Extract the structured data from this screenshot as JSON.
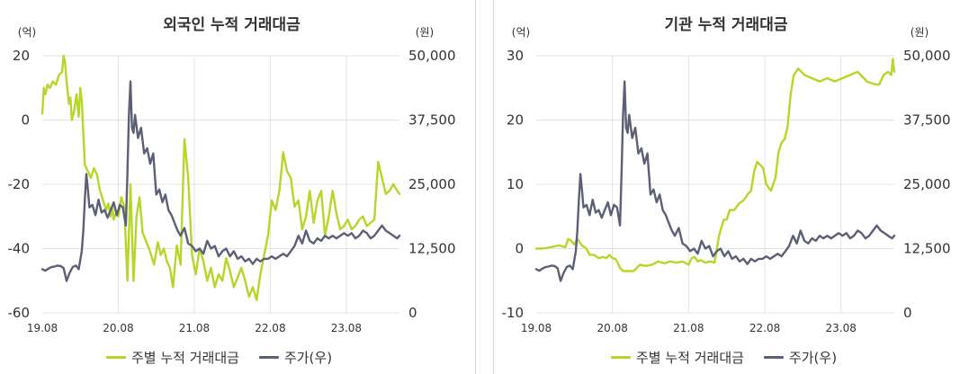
{
  "colors": {
    "flow": "#b6d629",
    "price": "#5c6075",
    "grid": "#e3e3e3",
    "text": "#333333"
  },
  "legend": {
    "flow_label": "주별 누적 거래대금",
    "price_label": "주가(우)"
  },
  "chart_data": [
    {
      "type": "line",
      "title": "외국인 누적 거래대금",
      "left_unit": "(억)",
      "right_unit": "(원)",
      "x_tick_labels": [
        "19.08",
        "20.08",
        "21.08",
        "22.08",
        "23.08"
      ],
      "xlim": [
        2019.58,
        2024.28
      ],
      "y_left_ticks": [
        "20",
        "0",
        "-20",
        "-40",
        "-60"
      ],
      "ylim_left": [
        -60,
        20
      ],
      "y_right_ticks": [
        "50,000",
        "37,500",
        "25,000",
        "12,500",
        "0"
      ],
      "ylim_right": [
        0,
        50000
      ],
      "series": [
        {
          "name": "주별 누적 거래대금",
          "axis": "left",
          "color": "#b6d629",
          "x": [
            2019.58,
            2019.6,
            2019.62,
            2019.65,
            2019.68,
            2019.72,
            2019.76,
            2019.8,
            2019.84,
            2019.86,
            2019.88,
            2019.9,
            2019.93,
            2019.95,
            2019.97,
            2020.0,
            2020.03,
            2020.06,
            2020.08,
            2020.1,
            2020.14,
            2020.18,
            2020.22,
            2020.26,
            2020.3,
            2020.34,
            2020.38,
            2020.42,
            2020.45,
            2020.48,
            2020.5,
            2020.52,
            2020.55,
            2020.58,
            2020.62,
            2020.66,
            2020.7,
            2020.74,
            2020.78,
            2020.82,
            2020.86,
            2020.9,
            2020.95,
            2021.0,
            2021.05,
            2021.1,
            2021.14,
            2021.18,
            2021.22,
            2021.26,
            2021.3,
            2021.35,
            2021.4,
            2021.45,
            2021.5,
            2021.55,
            2021.6,
            2021.65,
            2021.7,
            2021.75,
            2021.8,
            2021.85,
            2021.9,
            2021.95,
            2022.0,
            2022.05,
            2022.1,
            2022.15,
            2022.2,
            2022.25,
            2022.3,
            2022.35,
            2022.4,
            2022.45,
            2022.5,
            2022.55,
            2022.6,
            2022.65,
            2022.7,
            2022.75,
            2022.8,
            2022.85,
            2022.9,
            2022.95,
            2023.0,
            2023.05,
            2023.1,
            2023.15,
            2023.2,
            2023.25,
            2023.3,
            2023.35,
            2023.4,
            2023.45,
            2023.5,
            2023.55,
            2023.6,
            2023.65,
            2023.7,
            2023.75,
            2023.8,
            2023.85,
            2023.9,
            2023.95,
            2024.0,
            2024.05,
            2024.1,
            2024.15,
            2024.2,
            2024.25,
            2024.28
          ],
          "values": [
            2,
            10,
            8,
            11,
            10,
            12,
            11,
            14,
            15,
            20,
            18,
            12,
            5,
            7,
            0,
            3,
            8,
            1,
            10,
            6,
            -14,
            -16,
            -18,
            -15,
            -17,
            -22,
            -25,
            -28,
            -26,
            -30,
            -27,
            -31,
            -29,
            -30,
            -24,
            -27,
            -50,
            -20,
            -50,
            -30,
            -24,
            -35,
            -38,
            -41,
            -45,
            -38,
            -42,
            -40,
            -44,
            -46,
            -52,
            -39,
            -45,
            -6,
            -18,
            -42,
            -48,
            -40,
            -44,
            -50,
            -46,
            -52,
            -48,
            -50,
            -43,
            -47,
            -52,
            -49,
            -46,
            -50,
            -55,
            -52,
            -56,
            -48,
            -42,
            -36,
            -25,
            -28,
            -22,
            -10,
            -16,
            -18,
            -27,
            -25,
            -34,
            -30,
            -22,
            -32,
            -25,
            -22,
            -36,
            -30,
            -22,
            -29,
            -34,
            -33,
            -31,
            -34,
            -33,
            -31,
            -30,
            -33,
            -32,
            -31,
            -13,
            -18,
            -23,
            -22,
            -20,
            -22,
            -23
          ]
        },
        {
          "name": "주가(우)",
          "axis": "right",
          "color": "#5c6075",
          "x": [
            2019.58,
            2019.62,
            2019.66,
            2019.7,
            2019.74,
            2019.78,
            2019.82,
            2019.86,
            2019.9,
            2019.94,
            2019.98,
            2020.02,
            2020.06,
            2020.1,
            2020.12,
            2020.14,
            2020.16,
            2020.18,
            2020.2,
            2020.24,
            2020.28,
            2020.32,
            2020.36,
            2020.4,
            2020.44,
            2020.48,
            2020.52,
            2020.56,
            2020.6,
            2020.64,
            2020.68,
            2020.7,
            2020.72,
            2020.74,
            2020.76,
            2020.78,
            2020.8,
            2020.84,
            2020.88,
            2020.92,
            2020.96,
            2021.0,
            2021.04,
            2021.08,
            2021.12,
            2021.16,
            2021.2,
            2021.24,
            2021.28,
            2021.32,
            2021.36,
            2021.4,
            2021.45,
            2021.5,
            2021.55,
            2021.6,
            2021.65,
            2021.7,
            2021.75,
            2021.8,
            2021.85,
            2021.9,
            2021.95,
            2022.0,
            2022.05,
            2022.1,
            2022.15,
            2022.2,
            2022.25,
            2022.3,
            2022.35,
            2022.4,
            2022.45,
            2022.5,
            2022.55,
            2022.6,
            2022.65,
            2022.7,
            2022.75,
            2022.8,
            2022.85,
            2022.9,
            2022.95,
            2023.0,
            2023.05,
            2023.1,
            2023.15,
            2023.2,
            2023.25,
            2023.3,
            2023.35,
            2023.4,
            2023.45,
            2023.5,
            2023.55,
            2023.6,
            2023.65,
            2023.7,
            2023.75,
            2023.8,
            2023.85,
            2023.9,
            2023.95,
            2024.0,
            2024.05,
            2024.1,
            2024.15,
            2024.2,
            2024.25,
            2024.28
          ],
          "values": [
            8500,
            8200,
            8600,
            8900,
            9000,
            9200,
            9100,
            8700,
            6200,
            7800,
            8900,
            9200,
            8500,
            12000,
            16000,
            22000,
            27000,
            24000,
            20500,
            21000,
            19000,
            22000,
            19500,
            20000,
            18500,
            20000,
            21500,
            19000,
            21000,
            20500,
            17000,
            27000,
            38500,
            45000,
            36000,
            35000,
            38500,
            34000,
            36000,
            31000,
            32000,
            29000,
            31000,
            23000,
            24000,
            21500,
            23000,
            20000,
            19000,
            17500,
            16000,
            15000,
            16500,
            13500,
            13000,
            12000,
            12500,
            11500,
            14000,
            12500,
            13000,
            11000,
            12000,
            12500,
            11000,
            12000,
            10500,
            11000,
            10000,
            10500,
            9500,
            10500,
            10000,
            10500,
            10500,
            11000,
            10500,
            11000,
            11500,
            11000,
            12000,
            13000,
            15000,
            13500,
            16000,
            14000,
            13500,
            14500,
            14000,
            15000,
            14500,
            15000,
            14500,
            15000,
            15500,
            15000,
            15500,
            14500,
            15000,
            16000,
            15500,
            14500,
            15000,
            16000,
            17000,
            16000,
            15500,
            15000,
            14500,
            15000
          ]
        }
      ]
    },
    {
      "type": "line",
      "title": "기관 누적 거래대금",
      "left_unit": "(억)",
      "right_unit": "(원)",
      "x_tick_labels": [
        "19.08",
        "20.08",
        "21.08",
        "22.08",
        "23.08"
      ],
      "xlim": [
        2019.58,
        2024.28
      ],
      "y_left_ticks": [
        "30",
        "20",
        "10",
        "0",
        "-10"
      ],
      "ylim_left": [
        -10,
        30
      ],
      "y_right_ticks": [
        "50,000",
        "37,500",
        "25,000",
        "12,500",
        "0"
      ],
      "ylim_right": [
        0,
        50000
      ],
      "series": [
        {
          "name": "주별 누적 거래대금",
          "axis": "left",
          "color": "#b6d629",
          "x": [
            2019.58,
            2019.65,
            2019.72,
            2019.8,
            2019.88,
            2019.96,
            2020.0,
            2020.04,
            2020.08,
            2020.12,
            2020.18,
            2020.24,
            2020.28,
            2020.34,
            2020.4,
            2020.46,
            2020.5,
            2020.54,
            2020.58,
            2020.62,
            2020.64,
            2020.66,
            2020.68,
            2020.72,
            2020.78,
            2020.86,
            2020.94,
            2021.02,
            2021.1,
            2021.18,
            2021.26,
            2021.34,
            2021.42,
            2021.5,
            2021.58,
            2021.62,
            2021.66,
            2021.7,
            2021.74,
            2021.8,
            2021.86,
            2021.92,
            2021.98,
            2022.04,
            2022.08,
            2022.12,
            2022.18,
            2022.24,
            2022.3,
            2022.36,
            2022.4,
            2022.44,
            2022.48,
            2022.52,
            2022.56,
            2022.6,
            2022.66,
            2022.72,
            2022.76,
            2022.8,
            2022.84,
            2022.88,
            2022.92,
            2022.96,
            2023.02,
            2023.1,
            2023.2,
            2023.3,
            2023.4,
            2023.5,
            2023.6,
            2023.7,
            2023.8,
            2023.88,
            2023.92,
            2023.96,
            2024.02,
            2024.08,
            2024.14,
            2024.2,
            2024.24,
            2024.26,
            2024.28
          ],
          "values": [
            0,
            0,
            0.1,
            0.3,
            0.5,
            0.2,
            1.5,
            1.2,
            0.6,
            1.5,
            0.5,
            0,
            -1,
            -1,
            -1.5,
            -1.3,
            -1.5,
            -1,
            -1.5,
            -1.6,
            -2,
            -2.5,
            -3,
            -3.5,
            -3.5,
            -3.5,
            -2.5,
            -2.7,
            -2.5,
            -2,
            -2.3,
            -2,
            -2.2,
            -2,
            -2.5,
            -1.5,
            -1.3,
            -2,
            -1.8,
            -2.2,
            -2,
            -2.2,
            2,
            4.5,
            4.5,
            6,
            6,
            7,
            7.5,
            8.5,
            9,
            12,
            13.5,
            13,
            12.5,
            10,
            9,
            11,
            15,
            16.5,
            17,
            19,
            24,
            27,
            28,
            27,
            26.5,
            26,
            26.5,
            26,
            26.5,
            27,
            27.5,
            26.5,
            26,
            25.8,
            25.6,
            25.5,
            27,
            27.5,
            27,
            29.5,
            27.5
          ]
        },
        {
          "name": "주가(우)",
          "axis": "right",
          "color": "#5c6075",
          "x": [
            2019.58,
            2019.62,
            2019.66,
            2019.7,
            2019.74,
            2019.78,
            2019.82,
            2019.86,
            2019.9,
            2019.94,
            2019.98,
            2020.02,
            2020.06,
            2020.1,
            2020.12,
            2020.14,
            2020.16,
            2020.18,
            2020.2,
            2020.24,
            2020.28,
            2020.32,
            2020.36,
            2020.4,
            2020.44,
            2020.48,
            2020.52,
            2020.56,
            2020.6,
            2020.64,
            2020.68,
            2020.7,
            2020.72,
            2020.74,
            2020.76,
            2020.78,
            2020.8,
            2020.84,
            2020.88,
            2020.92,
            2020.96,
            2021.0,
            2021.04,
            2021.08,
            2021.12,
            2021.16,
            2021.2,
            2021.24,
            2021.28,
            2021.32,
            2021.36,
            2021.4,
            2021.45,
            2021.5,
            2021.55,
            2021.6,
            2021.65,
            2021.7,
            2021.75,
            2021.8,
            2021.85,
            2021.9,
            2021.95,
            2022.0,
            2022.05,
            2022.1,
            2022.15,
            2022.2,
            2022.25,
            2022.3,
            2022.35,
            2022.4,
            2022.45,
            2022.5,
            2022.55,
            2022.6,
            2022.65,
            2022.7,
            2022.75,
            2022.8,
            2022.85,
            2022.9,
            2022.95,
            2023.0,
            2023.05,
            2023.1,
            2023.15,
            2023.2,
            2023.25,
            2023.3,
            2023.35,
            2023.4,
            2023.45,
            2023.5,
            2023.55,
            2023.6,
            2023.65,
            2023.7,
            2023.75,
            2023.8,
            2023.85,
            2023.9,
            2023.95,
            2024.0,
            2024.05,
            2024.1,
            2024.15,
            2024.2,
            2024.25,
            2024.28
          ],
          "values": [
            8500,
            8200,
            8600,
            8900,
            9000,
            9200,
            9100,
            8700,
            6200,
            7800,
            8900,
            9200,
            8500,
            12000,
            16000,
            22000,
            27000,
            24000,
            20500,
            21000,
            19000,
            22000,
            19500,
            20000,
            18500,
            20000,
            21500,
            19000,
            21000,
            20500,
            17000,
            27000,
            38500,
            45000,
            36000,
            35000,
            38500,
            34000,
            36000,
            31000,
            32000,
            29000,
            31000,
            23000,
            24000,
            21500,
            23000,
            20000,
            19000,
            17500,
            16000,
            15000,
            16500,
            13500,
            13000,
            12000,
            12500,
            11500,
            14000,
            12500,
            13000,
            11000,
            12000,
            12500,
            11000,
            12000,
            10500,
            11000,
            10000,
            10500,
            9500,
            10500,
            10000,
            10500,
            10500,
            11000,
            10500,
            11000,
            11500,
            11000,
            12000,
            13000,
            15000,
            13500,
            16000,
            14000,
            13500,
            14500,
            14000,
            15000,
            14500,
            15000,
            14500,
            15000,
            15500,
            15000,
            15500,
            14500,
            15000,
            16000,
            15500,
            14500,
            15000,
            16000,
            17000,
            16000,
            15500,
            15000,
            14500,
            15000
          ]
        }
      ]
    }
  ]
}
